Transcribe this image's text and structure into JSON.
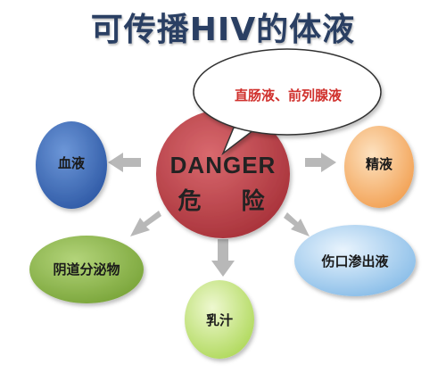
{
  "title": "可传播HIV的体液",
  "center": {
    "en": "DANGER",
    "zh": "危 险"
  },
  "callout": "直肠液、前列腺液",
  "nodes": {
    "blood": "血液",
    "semen": "精液",
    "vaginal": "阴道分泌物",
    "wound": "伤口渗出液",
    "milk": "乳汁"
  },
  "colors": {
    "center": "#c0434a",
    "blood": "#3e6fbf",
    "semen": "#f2a154",
    "vaginal": "#8fb848",
    "wound": "#8fc0ea",
    "milk": "#b4dc60",
    "arrow": "#b8b8b8"
  }
}
